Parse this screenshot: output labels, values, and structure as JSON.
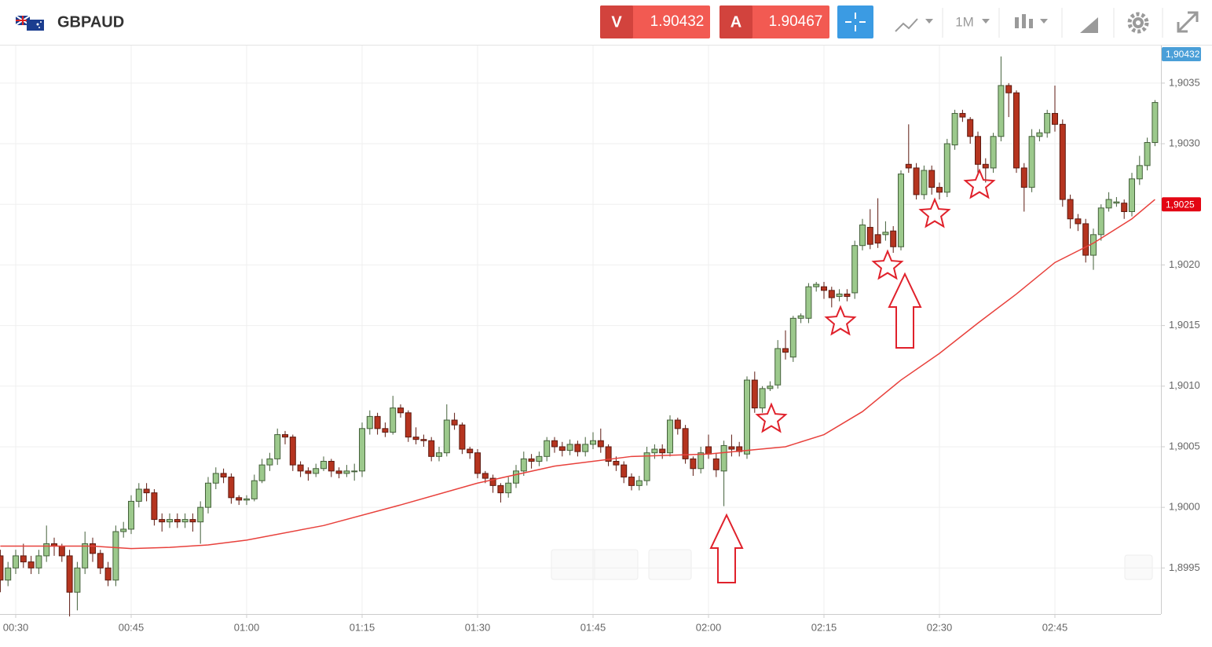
{
  "header": {
    "symbol": "GBPAUD",
    "sell_label": "V",
    "sell_price": 1.90432,
    "buy_label": "A",
    "buy_price": 1.90467,
    "timeframe": "1M"
  },
  "chart_data": {
    "type": "candlestick",
    "x": [
      "00:28",
      "00:29",
      "00:30",
      "00:31",
      "00:32",
      "00:33",
      "00:34",
      "00:35",
      "00:36",
      "00:37",
      "00:38",
      "00:39",
      "00:40",
      "00:41",
      "00:42",
      "00:43",
      "00:44",
      "00:45",
      "00:46",
      "00:47",
      "00:48",
      "00:49",
      "00:50",
      "00:51",
      "00:52",
      "00:53",
      "00:54",
      "00:55",
      "00:56",
      "00:57",
      "00:58",
      "00:59",
      "01:00",
      "01:01",
      "01:02",
      "01:03",
      "01:04",
      "01:05",
      "01:06",
      "01:07",
      "01:08",
      "01:09",
      "01:10",
      "01:11",
      "01:12",
      "01:13",
      "01:14",
      "01:15",
      "01:16",
      "01:17",
      "01:18",
      "01:19",
      "01:20",
      "01:21",
      "01:22",
      "01:23",
      "01:24",
      "01:25",
      "01:26",
      "01:27",
      "01:28",
      "01:29",
      "01:30",
      "01:31",
      "01:32",
      "01:33",
      "01:34",
      "01:35",
      "01:36",
      "01:37",
      "01:38",
      "01:39",
      "01:40",
      "01:41",
      "01:42",
      "01:43",
      "01:44",
      "01:45",
      "01:46",
      "01:47",
      "01:48",
      "01:49",
      "01:50",
      "01:51",
      "01:52",
      "01:53",
      "01:54",
      "01:55",
      "01:56",
      "01:57",
      "01:58",
      "01:59",
      "02:00",
      "02:01",
      "02:02",
      "02:03",
      "02:04",
      "02:05",
      "02:06",
      "02:07",
      "02:08",
      "02:09",
      "02:10",
      "02:11",
      "02:12",
      "02:13",
      "02:14",
      "02:15",
      "02:16",
      "02:17",
      "02:18",
      "02:19",
      "02:20",
      "02:21",
      "02:22",
      "02:23",
      "02:24",
      "02:25",
      "02:26",
      "02:27",
      "02:28",
      "02:29",
      "02:30",
      "02:31",
      "02:32",
      "02:33",
      "02:34",
      "02:35",
      "02:36",
      "02:37",
      "02:38",
      "02:39",
      "02:40",
      "02:41",
      "02:42",
      "02:43",
      "02:44",
      "02:45",
      "02:46",
      "02:47",
      "02:48",
      "02:49",
      "02:50",
      "02:51",
      "02:52",
      "02:53",
      "02:54",
      "02:55",
      "02:56",
      "02:57",
      "02:58"
    ],
    "candles": [
      [
        1.8996,
        1.89965,
        1.8993,
        1.8994
      ],
      [
        1.8994,
        1.89955,
        1.89935,
        1.8995
      ],
      [
        1.8995,
        1.89965,
        1.89945,
        1.8996
      ],
      [
        1.8996,
        1.8997,
        1.8995,
        1.89955
      ],
      [
        1.89955,
        1.8996,
        1.89945,
        1.8995
      ],
      [
        1.8995,
        1.89965,
        1.89945,
        1.8996
      ],
      [
        1.8996,
        1.89985,
        1.89955,
        1.8997
      ],
      [
        1.8997,
        1.89975,
        1.8996,
        1.89968
      ],
      [
        1.89968,
        1.8997,
        1.89955,
        1.8996
      ],
      [
        1.8996,
        1.89965,
        1.8991,
        1.8993
      ],
      [
        1.8993,
        1.89955,
        1.89915,
        1.8995
      ],
      [
        1.8995,
        1.8998,
        1.89945,
        1.8997
      ],
      [
        1.8997,
        1.89975,
        1.89955,
        1.89962
      ],
      [
        1.89962,
        1.89965,
        1.89945,
        1.8995
      ],
      [
        1.8995,
        1.89955,
        1.89935,
        1.8994
      ],
      [
        1.8994,
        1.89985,
        1.89935,
        1.8998
      ],
      [
        1.8998,
        1.89988,
        1.89975,
        1.89982
      ],
      [
        1.89982,
        1.9001,
        1.89978,
        1.90005
      ],
      [
        1.90005,
        1.9002,
        1.9,
        1.90015
      ],
      [
        1.90015,
        1.9002,
        1.90005,
        1.90012
      ],
      [
        1.90012,
        1.90015,
        1.89985,
        1.8999
      ],
      [
        1.8999,
        1.89995,
        1.8998,
        1.89988
      ],
      [
        1.89988,
        1.89995,
        1.89983,
        1.8999
      ],
      [
        1.8999,
        1.89995,
        1.89983,
        1.89988
      ],
      [
        1.89988,
        1.89995,
        1.89983,
        1.8999
      ],
      [
        1.8999,
        1.89995,
        1.8998,
        1.89988
      ],
      [
        1.89988,
        1.90005,
        1.8997,
        1.9
      ],
      [
        1.9,
        1.90025,
        1.89995,
        1.9002
      ],
      [
        1.9002,
        1.90033,
        1.90015,
        1.90028
      ],
      [
        1.90028,
        1.90032,
        1.9002,
        1.90025
      ],
      [
        1.90025,
        1.90028,
        1.90003,
        1.90008
      ],
      [
        1.90008,
        1.9001,
        1.90002,
        1.90006
      ],
      [
        1.90006,
        1.9001,
        1.90002,
        1.90007
      ],
      [
        1.90007,
        1.90027,
        1.90005,
        1.90022
      ],
      [
        1.90022,
        1.9004,
        1.9002,
        1.90035
      ],
      [
        1.90035,
        1.90045,
        1.9003,
        1.9004
      ],
      [
        1.9004,
        1.90065,
        1.90035,
        1.9006
      ],
      [
        1.9006,
        1.90063,
        1.90052,
        1.90058
      ],
      [
        1.90058,
        1.9006,
        1.9003,
        1.90035
      ],
      [
        1.90035,
        1.90038,
        1.90025,
        1.9003
      ],
      [
        1.9003,
        1.90033,
        1.90022,
        1.90028
      ],
      [
        1.90028,
        1.90036,
        1.90025,
        1.90032
      ],
      [
        1.90032,
        1.90042,
        1.9003,
        1.90038
      ],
      [
        1.90038,
        1.9004,
        1.90025,
        1.9003
      ],
      [
        1.9003,
        1.90033,
        1.90024,
        1.90028
      ],
      [
        1.90028,
        1.90035,
        1.90025,
        1.9003
      ],
      [
        1.9003,
        1.90036,
        1.90022,
        1.9003
      ],
      [
        1.9003,
        1.9007,
        1.90025,
        1.90065
      ],
      [
        1.90065,
        1.9008,
        1.9006,
        1.90075
      ],
      [
        1.90075,
        1.90078,
        1.9006,
        1.90065
      ],
      [
        1.90065,
        1.9007,
        1.90058,
        1.90062
      ],
      [
        1.90062,
        1.90092,
        1.9006,
        1.90082
      ],
      [
        1.90082,
        1.90085,
        1.90074,
        1.90078
      ],
      [
        1.90078,
        1.9008,
        1.90054,
        1.90058
      ],
      [
        1.90058,
        1.90066,
        1.90052,
        1.90056
      ],
      [
        1.90056,
        1.9006,
        1.9005,
        1.90055
      ],
      [
        1.90055,
        1.90058,
        1.90038,
        1.90042
      ],
      [
        1.90042,
        1.9005,
        1.90038,
        1.90045
      ],
      [
        1.90045,
        1.90085,
        1.90042,
        1.90072
      ],
      [
        1.90072,
        1.90078,
        1.90064,
        1.90068
      ],
      [
        1.90068,
        1.9007,
        1.90044,
        1.90048
      ],
      [
        1.90048,
        1.9005,
        1.9004,
        1.90045
      ],
      [
        1.90045,
        1.90048,
        1.90024,
        1.90028
      ],
      [
        1.90028,
        1.9003,
        1.9002,
        1.90024
      ],
      [
        1.90024,
        1.90027,
        1.90012,
        1.90018
      ],
      [
        1.90018,
        1.9002,
        1.90004,
        1.90012
      ],
      [
        1.90012,
        1.90025,
        1.90008,
        1.9002
      ],
      [
        1.9002,
        1.90035,
        1.90016,
        1.9003
      ],
      [
        1.9003,
        1.90046,
        1.90026,
        1.9004
      ],
      [
        1.9004,
        1.90044,
        1.90032,
        1.90038
      ],
      [
        1.90038,
        1.90046,
        1.90034,
        1.90042
      ],
      [
        1.90042,
        1.90058,
        1.90038,
        1.90055
      ],
      [
        1.90055,
        1.90058,
        1.90045,
        1.9005
      ],
      [
        1.9005,
        1.90054,
        1.90042,
        1.90047
      ],
      [
        1.90047,
        1.90056,
        1.90043,
        1.90052
      ],
      [
        1.90052,
        1.90055,
        1.90042,
        1.90046
      ],
      [
        1.90046,
        1.90058,
        1.90042,
        1.90052
      ],
      [
        1.90052,
        1.90062,
        1.90048,
        1.90055
      ],
      [
        1.90055,
        1.90065,
        1.90045,
        1.9005
      ],
      [
        1.9005,
        1.90052,
        1.90034,
        1.90038
      ],
      [
        1.90038,
        1.90042,
        1.9003,
        1.90035
      ],
      [
        1.90035,
        1.90038,
        1.9002,
        1.90025
      ],
      [
        1.90025,
        1.90028,
        1.90014,
        1.90018
      ],
      [
        1.90018,
        1.90026,
        1.90014,
        1.90022
      ],
      [
        1.90022,
        1.9005,
        1.90018,
        1.90045
      ],
      [
        1.90045,
        1.90052,
        1.9004,
        1.90048
      ],
      [
        1.90048,
        1.90052,
        1.9004,
        1.90045
      ],
      [
        1.90045,
        1.90076,
        1.90042,
        1.90072
      ],
      [
        1.90072,
        1.90074,
        1.9006,
        1.90065
      ],
      [
        1.90065,
        1.90068,
        1.90036,
        1.9004
      ],
      [
        1.9004,
        1.90042,
        1.90026,
        1.90032
      ],
      [
        1.90032,
        1.9005,
        1.90028,
        1.90045
      ],
      [
        1.9005,
        1.9006,
        1.9004,
        1.90044
      ],
      [
        1.9004,
        1.90045,
        1.90025,
        1.90031
      ],
      [
        1.9003,
        1.90055,
        1.90001,
        1.90051
      ],
      [
        1.9005,
        1.9006,
        1.90042,
        1.90048
      ],
      [
        1.9005,
        1.90054,
        1.90042,
        1.90046
      ],
      [
        1.90044,
        1.90108,
        1.9004,
        1.90105
      ],
      [
        1.90105,
        1.90112,
        1.90078,
        1.90082
      ],
      [
        1.90082,
        1.901,
        1.90078,
        1.90098
      ],
      [
        1.90098,
        1.90104,
        1.90096,
        1.901
      ],
      [
        1.90101,
        1.90138,
        1.90098,
        1.90131
      ],
      [
        1.90131,
        1.90146,
        1.90122,
        1.90128
      ],
      [
        1.90124,
        1.90158,
        1.9012,
        1.90156
      ],
      [
        1.90156,
        1.9016,
        1.90152,
        1.90158
      ],
      [
        1.90156,
        1.90185,
        1.90152,
        1.90182
      ],
      [
        1.90182,
        1.90186,
        1.90178,
        1.90184
      ],
      [
        1.90182,
        1.90186,
        1.90172,
        1.90179
      ],
      [
        1.90179,
        1.90182,
        1.90165,
        1.90173
      ],
      [
        1.90174,
        1.9018,
        1.9017,
        1.90176
      ],
      [
        1.90176,
        1.9018,
        1.9017,
        1.90174
      ],
      [
        1.90177,
        1.9022,
        1.90172,
        1.90216
      ],
      [
        1.90216,
        1.90238,
        1.90212,
        1.90233
      ],
      [
        1.90231,
        1.90246,
        1.90213,
        1.90217
      ],
      [
        1.90225,
        1.90255,
        1.90214,
        1.90218
      ],
      [
        1.90225,
        1.90236,
        1.9022,
        1.90227
      ],
      [
        1.90228,
        1.90232,
        1.9021,
        1.90215
      ],
      [
        1.90215,
        1.90278,
        1.90212,
        1.90275
      ],
      [
        1.90283,
        1.90316,
        1.90276,
        1.9028
      ],
      [
        1.9028,
        1.90284,
        1.90254,
        1.90258
      ],
      [
        1.90258,
        1.90282,
        1.90254,
        1.90278
      ],
      [
        1.90278,
        1.90282,
        1.90258,
        1.90264
      ],
      [
        1.90264,
        1.90268,
        1.90254,
        1.9026
      ],
      [
        1.9026,
        1.90304,
        1.90256,
        1.903
      ],
      [
        1.90299,
        1.90328,
        1.90295,
        1.90325
      ],
      [
        1.90325,
        1.90328,
        1.90318,
        1.90322
      ],
      [
        1.9032,
        1.90322,
        1.903,
        1.90306
      ],
      [
        1.90306,
        1.9031,
        1.90276,
        1.90283
      ],
      [
        1.90283,
        1.90288,
        1.90268,
        1.9028
      ],
      [
        1.9028,
        1.90309,
        1.90276,
        1.90306
      ],
      [
        1.90306,
        1.90372,
        1.90302,
        1.90348
      ],
      [
        1.90348,
        1.9035,
        1.90322,
        1.90342
      ],
      [
        1.90342,
        1.90344,
        1.90276,
        1.9028
      ],
      [
        1.9028,
        1.90284,
        1.90244,
        1.90264
      ],
      [
        1.90264,
        1.90312,
        1.9026,
        1.90306
      ],
      [
        1.90306,
        1.90312,
        1.90302,
        1.90309
      ],
      [
        1.90309,
        1.90328,
        1.90305,
        1.90325
      ],
      [
        1.90325,
        1.90348,
        1.9031,
        1.90316
      ],
      [
        1.90316,
        1.9032,
        1.90248,
        1.90254
      ],
      [
        1.90254,
        1.90258,
        1.9023,
        1.90238
      ],
      [
        1.90238,
        1.90242,
        1.90228,
        1.90234
      ],
      [
        1.90234,
        1.90238,
        1.90202,
        1.90208
      ],
      [
        1.90208,
        1.9023,
        1.90196,
        1.90225
      ],
      [
        1.90225,
        1.9025,
        1.9022,
        1.90247
      ],
      [
        1.90247,
        1.9026,
        1.90244,
        1.90254
      ],
      [
        1.90251,
        1.90256,
        1.90248,
        1.90252
      ],
      [
        1.90251,
        1.90254,
        1.90238,
        1.90244
      ],
      [
        1.90244,
        1.90276,
        1.9024,
        1.90271
      ],
      [
        1.90271,
        1.9029,
        1.90266,
        1.90282
      ],
      [
        1.90282,
        1.90305,
        1.90278,
        1.90301
      ],
      [
        1.90301,
        1.90336,
        1.90298,
        1.90334
      ]
    ],
    "up_color": "#9cc98c",
    "down_color": "#b5341f",
    "ma": {
      "color": "#e8413c",
      "x": [
        "00:28",
        "00:40",
        "00:45",
        "00:50",
        "00:55",
        "01:00",
        "01:10",
        "01:20",
        "01:30",
        "01:40",
        "01:50",
        "02:00",
        "02:10",
        "02:15",
        "02:20",
        "02:25",
        "02:30",
        "02:35",
        "02:40",
        "02:45",
        "02:50",
        "02:55",
        "02:58"
      ],
      "values": [
        1.89968,
        1.89968,
        1.89966,
        1.89967,
        1.89969,
        1.89973,
        1.89985,
        1.90002,
        1.9002,
        1.90034,
        1.90042,
        1.90044,
        1.9005,
        1.9006,
        1.90079,
        1.90105,
        1.90127,
        1.90152,
        1.90176,
        1.90202,
        1.90218,
        1.90238,
        1.90254
      ]
    },
    "ylim": [
      1.89912,
      1.90381
    ],
    "yticks": [
      {
        "value": 1.8995,
        "label": "1,8995"
      },
      {
        "value": 1.9,
        "label": "1,9000"
      },
      {
        "value": 1.9005,
        "label": "1,9005"
      },
      {
        "value": 1.901,
        "label": "1,9010"
      },
      {
        "value": 1.9015,
        "label": "1,9015"
      },
      {
        "value": 1.902,
        "label": "1,9020"
      },
      {
        "value": 1.9025,
        "label": "1,9025"
      },
      {
        "value": 1.903,
        "label": "1,9030"
      },
      {
        "value": 1.9035,
        "label": "1,9035"
      }
    ],
    "xticks": [
      "00:30",
      "00:45",
      "01:00",
      "01:15",
      "01:30",
      "01:45",
      "02:00",
      "02:15",
      "02:30",
      "02:45"
    ],
    "grid": true,
    "price_tags": [
      {
        "value": 1.90432,
        "label": "1,90432",
        "color": "#4a9fd8"
      },
      {
        "value": 1.9025,
        "label": "1,9025",
        "color": "#e30613"
      }
    ]
  }
}
